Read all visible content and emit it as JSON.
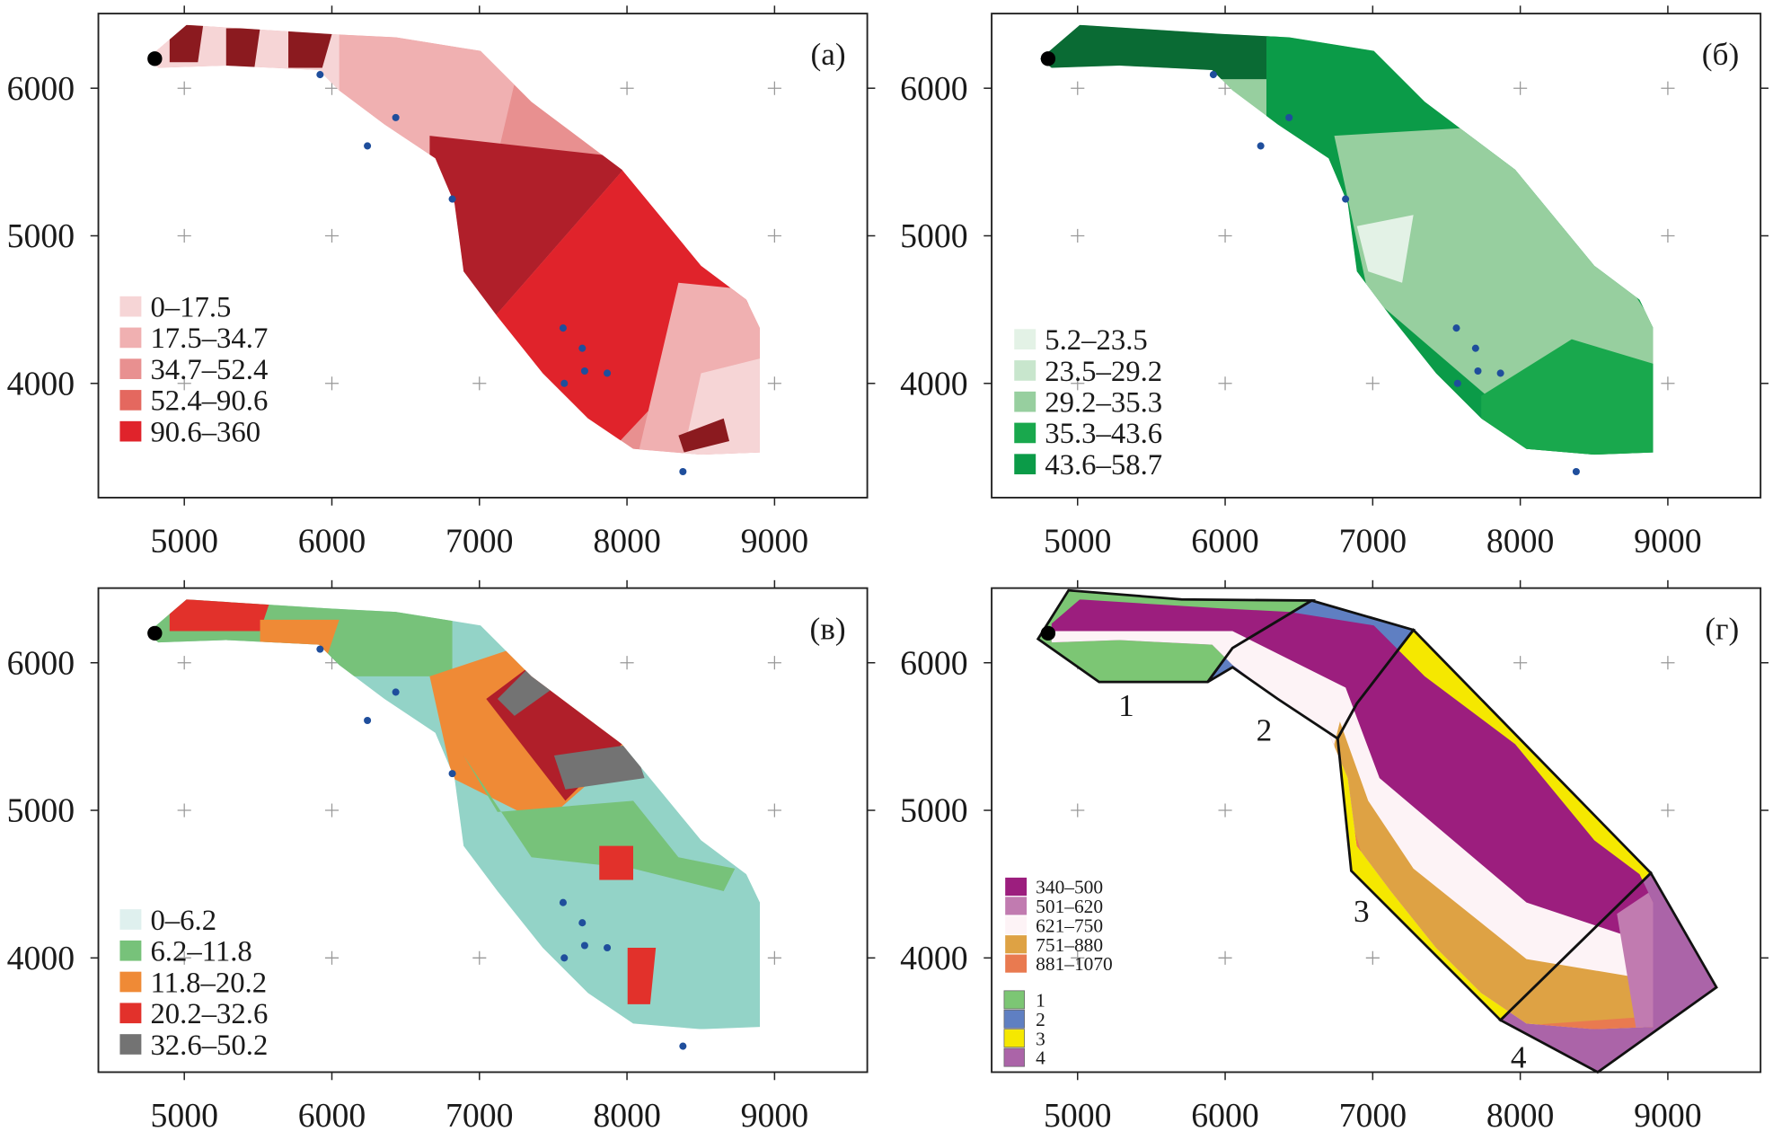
{
  "chart_data": [
    {
      "type": "heatmap",
      "panel_label": "(a)",
      "xlim": [
        4418,
        9628
      ],
      "ylim": [
        3226,
        6506
      ],
      "xticks": [
        "5000",
        "6000",
        "7000",
        "8000",
        "9000"
      ],
      "yticks": [
        "4000",
        "5000",
        "6000"
      ],
      "legend": {
        "placement": "bottom-left",
        "entries": [
          {
            "label": "0–17.5",
            "color": "#f6d5d6"
          },
          {
            "label": "17.5–34.7",
            "color": "#f0b0b1"
          },
          {
            "label": "34.7–52.4",
            "color": "#e89090"
          },
          {
            "label": "52.4–90.6",
            "color": "#e4685f"
          },
          {
            "label": "90.6–360",
            "color": "#e0232b"
          }
        ]
      },
      "accent_dark": "#8b1a1f"
    },
    {
      "type": "heatmap",
      "panel_label": "(б)",
      "xlim": [
        4418,
        9628
      ],
      "ylim": [
        3226,
        6506
      ],
      "xticks": [
        "5000",
        "6000",
        "7000",
        "8000",
        "9000"
      ],
      "yticks": [
        "4000",
        "5000",
        "6000"
      ],
      "legend": {
        "placement": "bottom-left",
        "entries": [
          {
            "label": "5.2–23.5",
            "color": "#e3f2e6"
          },
          {
            "label": "23.5–29.2",
            "color": "#c8e6cd"
          },
          {
            "label": "29.2–35.3",
            "color": "#97cf9f"
          },
          {
            "label": "35.3–43.6",
            "color": "#19a84d"
          },
          {
            "label": "43.6–58.7",
            "color": "#0b9b48"
          }
        ]
      },
      "accent_dark": "#0a6b34"
    },
    {
      "type": "heatmap",
      "panel_label": "(в)",
      "xlim": [
        4418,
        9628
      ],
      "ylim": [
        3226,
        6506
      ],
      "xticks": [
        "5000",
        "6000",
        "7000",
        "8000",
        "9000"
      ],
      "yticks": [
        "4000",
        "5000",
        "6000"
      ],
      "legend": {
        "placement": "bottom-left",
        "entries": [
          {
            "label": "0–6.2",
            "color": "#dff0ee"
          },
          {
            "label": "6.2–11.8",
            "color": "#77c27a"
          },
          {
            "label": "11.8–20.2",
            "color": "#ef8a36"
          },
          {
            "label": "20.2–32.6",
            "color": "#e2312b"
          },
          {
            "label": "32.6–50.2",
            "color": "#737373"
          }
        ]
      },
      "base_color": "#93d3c7"
    },
    {
      "type": "heatmap",
      "panel_label": "(г)",
      "xlim": [
        4418,
        9628
      ],
      "ylim": [
        3226,
        6506
      ],
      "xticks": [
        "5000",
        "6000",
        "7000",
        "8000",
        "9000"
      ],
      "yticks": [
        "4000",
        "5000",
        "6000"
      ],
      "legend": {
        "placement": "bottom-left",
        "entries": [
          {
            "label": "340–500",
            "color": "#9c1e7e"
          },
          {
            "label": "501–620",
            "color": "#c17bb0"
          },
          {
            "label": "621–750",
            "color": "#fdf3f6"
          },
          {
            "label": "751–880",
            "color": "#dea244"
          },
          {
            "label": "881–1070",
            "color": "#e97a50"
          }
        ]
      },
      "zones": [
        {
          "label": "1",
          "color": "#7cc674"
        },
        {
          "label": "2",
          "color": "#5f7fc2"
        },
        {
          "label": "3",
          "color": "#f5e800"
        },
        {
          "label": "4",
          "color": "#ab64a8"
        }
      ]
    }
  ],
  "wells": [
    [
      6241,
      5609
    ],
    [
      8379,
      3402
    ],
    [
      6816,
      5249
    ],
    [
      6433,
      5801
    ],
    [
      5920,
      6092
    ],
    [
      7567,
      4375
    ],
    [
      7697,
      4238
    ],
    [
      7713,
      4084
    ],
    [
      7866,
      4069
    ],
    [
      7575,
      4000
    ]
  ],
  "origin_point": [
    4800,
    6200
  ],
  "colors": {
    "well": "#1f4e9c",
    "origin": "#000000",
    "frame": "#222222",
    "grid_cross": "#999999"
  }
}
